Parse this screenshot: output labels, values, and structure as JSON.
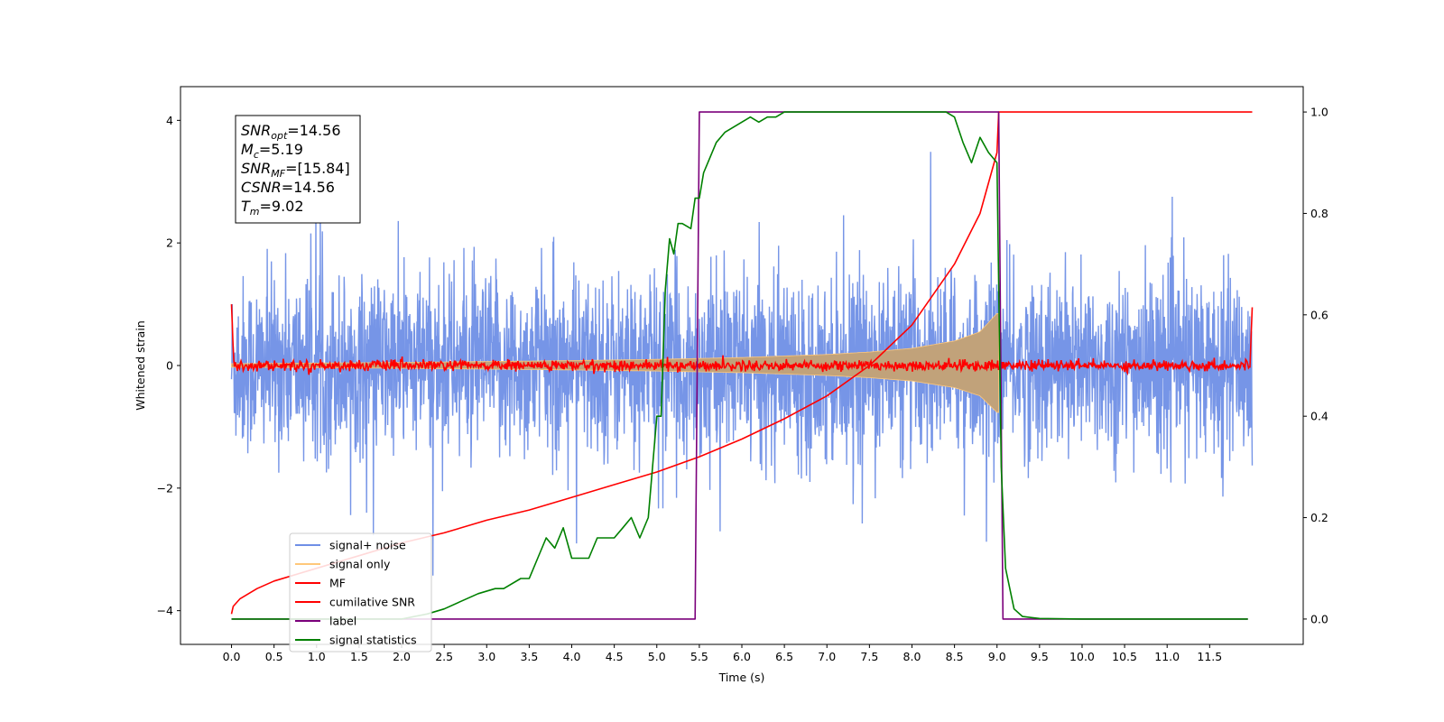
{
  "chart_data": {
    "type": "line",
    "xlabel": "Time (s)",
    "ylabel": "Whitened strain",
    "xlim": [
      -0.6,
      12.6
    ],
    "ylim": [
      -4.55,
      4.55
    ],
    "ylim_right": [
      -0.05,
      1.05
    ],
    "x_ticks": [
      0.0,
      0.5,
      1.0,
      1.5,
      2.0,
      2.5,
      3.0,
      3.5,
      4.0,
      4.5,
      5.0,
      5.5,
      6.0,
      6.5,
      7.0,
      7.5,
      8.0,
      8.5,
      9.0,
      9.5,
      10.0,
      10.5,
      11.0,
      11.5
    ],
    "x_tick_labels": [
      "0.0",
      "0.5",
      "1.0",
      "1.5",
      "2.0",
      "2.5",
      "3.0",
      "3.5",
      "4.0",
      "4.5",
      "5.0",
      "5.5",
      "6.0",
      "6.5",
      "7.0",
      "7.5",
      "8.0",
      "8.5",
      "9.0",
      "9.5",
      "10.0",
      "10.5",
      "11.0",
      "11.5"
    ],
    "y_ticks": [
      4,
      2,
      0,
      -2,
      -4
    ],
    "y_tick_labels": [
      "4",
      "2",
      "0",
      "−2",
      "−4"
    ],
    "y2_ticks": [
      1.0,
      0.8,
      0.6,
      0.4,
      0.2,
      0.0
    ],
    "y2_tick_labels": [
      "1.0",
      "0.8",
      "0.6",
      "0.4",
      "0.2",
      "0.0"
    ],
    "grid": false,
    "legend_position": "bottom-left",
    "annotation": {
      "lines": [
        {
          "base": "SNR",
          "sub": "opt",
          "value": "=14.56"
        },
        {
          "base": "M",
          "sub": "c",
          "value": "=5.19"
        },
        {
          "base": "SNR",
          "sub": "MF",
          "value": "=[15.84]"
        },
        {
          "base": "CSNR",
          "sub": "",
          "value": "=14.56"
        },
        {
          "base": "T",
          "sub": "m",
          "value": "=9.02"
        }
      ]
    },
    "series": [
      {
        "name": "signal+ noise",
        "axis": "left",
        "color": "#6f8fe6",
        "kind": "noise",
        "x_range": [
          0.0,
          12.0
        ],
        "amplitude_typical": 1.7,
        "amplitude_peak": 4.1
      },
      {
        "name": "signal only",
        "axis": "left",
        "color": "#ffc87a",
        "kind": "envelope",
        "x_range": [
          0.0,
          9.02
        ],
        "envelope": {
          "x": [
            0.0,
            2.0,
            4.0,
            5.0,
            6.0,
            7.0,
            7.5,
            8.0,
            8.5,
            8.8,
            9.0,
            9.02
          ],
          "y": [
            0.03,
            0.05,
            0.08,
            0.1,
            0.13,
            0.18,
            0.22,
            0.28,
            0.4,
            0.55,
            0.85,
            0.85
          ]
        }
      },
      {
        "name": "MF",
        "axis": "left",
        "color": "#ff0000",
        "kind": "noise",
        "x_range": [
          0.0,
          12.0
        ],
        "amplitude_typical": 0.08,
        "edge_values": [
          1.0,
          0.95
        ]
      },
      {
        "name": "cumilative SNR",
        "axis": "right",
        "color": "#ff0000",
        "x": [
          0.0,
          0.02,
          0.1,
          0.3,
          0.5,
          1.0,
          1.5,
          2.0,
          2.5,
          3.0,
          3.5,
          4.0,
          4.5,
          5.0,
          5.5,
          6.0,
          6.5,
          7.0,
          7.5,
          8.0,
          8.5,
          8.8,
          9.0,
          9.02,
          12.0
        ],
        "y": [
          0.01,
          0.025,
          0.04,
          0.06,
          0.075,
          0.1,
          0.125,
          0.15,
          0.17,
          0.195,
          0.215,
          0.24,
          0.265,
          0.29,
          0.32,
          0.355,
          0.395,
          0.44,
          0.5,
          0.58,
          0.7,
          0.8,
          0.92,
          1.0,
          1.0
        ]
      },
      {
        "name": "label",
        "axis": "right",
        "color": "#7b007b",
        "x": [
          0.0,
          5.45,
          5.5,
          9.02,
          9.07,
          11.95
        ],
        "y": [
          0.0,
          0.0,
          1.0,
          1.0,
          0.0,
          0.0
        ]
      },
      {
        "name": "signal statistics",
        "axis": "right",
        "color": "#008000",
        "x": [
          0.0,
          2.0,
          2.3,
          2.5,
          2.7,
          2.9,
          3.1,
          3.2,
          3.4,
          3.5,
          3.6,
          3.7,
          3.8,
          3.9,
          4.0,
          4.1,
          4.2,
          4.3,
          4.4,
          4.5,
          4.6,
          4.7,
          4.8,
          4.9,
          5.0,
          5.05,
          5.1,
          5.15,
          5.2,
          5.25,
          5.3,
          5.4,
          5.45,
          5.5,
          5.55,
          5.6,
          5.7,
          5.8,
          5.9,
          6.0,
          6.1,
          6.2,
          6.3,
          6.4,
          6.5,
          6.6,
          6.8,
          7.0,
          7.5,
          8.0,
          8.4,
          8.5,
          8.6,
          8.7,
          8.8,
          8.9,
          9.0,
          9.05,
          9.1,
          9.2,
          9.3,
          9.5,
          10.0,
          11.95
        ],
        "y": [
          0.0,
          0.0,
          0.01,
          0.02,
          0.035,
          0.05,
          0.06,
          0.06,
          0.08,
          0.08,
          0.12,
          0.16,
          0.14,
          0.18,
          0.12,
          0.12,
          0.12,
          0.16,
          0.16,
          0.16,
          0.18,
          0.2,
          0.16,
          0.2,
          0.4,
          0.4,
          0.65,
          0.75,
          0.72,
          0.78,
          0.78,
          0.77,
          0.83,
          0.83,
          0.88,
          0.9,
          0.94,
          0.96,
          0.97,
          0.98,
          0.99,
          0.98,
          0.99,
          0.99,
          1.0,
          1.0,
          1.0,
          1.0,
          1.0,
          1.0,
          1.0,
          0.99,
          0.94,
          0.9,
          0.95,
          0.92,
          0.9,
          0.3,
          0.1,
          0.02,
          0.005,
          0.001,
          0.0,
          0.0
        ]
      }
    ]
  }
}
